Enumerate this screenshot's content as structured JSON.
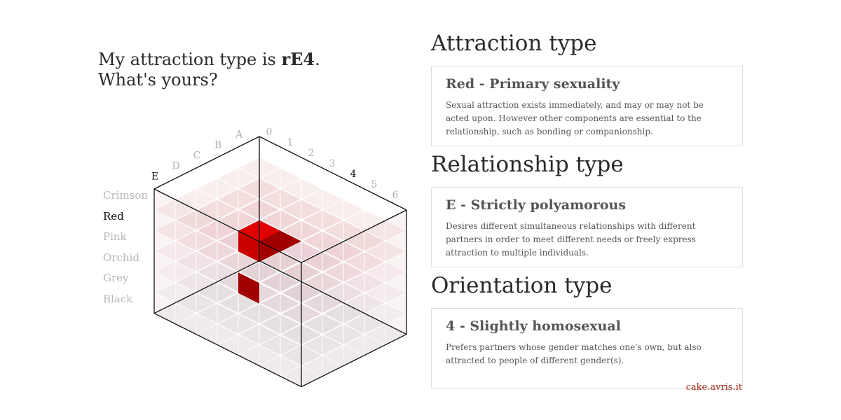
{
  "headline": {
    "prefix": "My attraction type is ",
    "code": "rE4",
    "suffix": ".",
    "line2": "What's yours?"
  },
  "axes": {
    "relationship_letters": [
      "A",
      "B",
      "C",
      "D",
      "E"
    ],
    "orientation_numbers": [
      "0",
      "1",
      "2",
      "3",
      "4",
      "5",
      "6"
    ],
    "colors": [
      "Crimson",
      "Red",
      "Pink",
      "Orchid",
      "Grey",
      "Black"
    ],
    "selected_letter": "E",
    "selected_number": "4",
    "selected_color": "Red"
  },
  "sections": [
    {
      "title": "Attraction type",
      "heading": "Red - Primary sexuality",
      "text": "Sexual attraction exists immediately, and may or may not be acted upon. However other components are essential to the relationship, such as bonding or companionship."
    },
    {
      "title": "Relationship type",
      "heading": "E - Strictly polyamorous",
      "text": "Desires different simultaneous relationships with different partners in order to meet different needs or freely express attraction to multiple individuals."
    },
    {
      "title": "Orientation type",
      "heading": "4 - Slightly homosexual",
      "text": "Prefers partners whose gender matches one's own, but also attracted to people of different gender(s)."
    }
  ],
  "colors": {
    "highlight": "#e00000",
    "highlight_dark": "#a10000",
    "accent_credit": "#a52a1a"
  },
  "credit": "cake.avris.it"
}
